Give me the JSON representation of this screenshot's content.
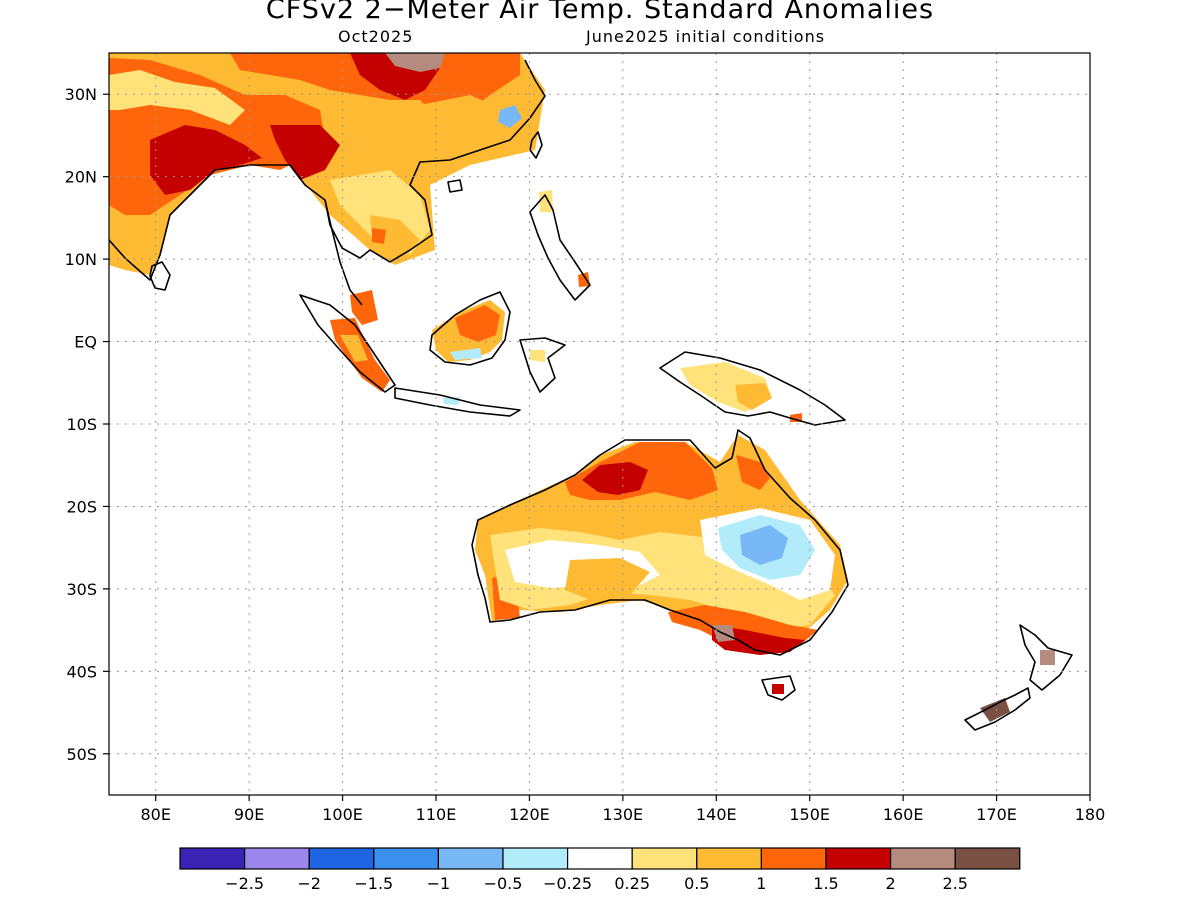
{
  "title": "CFSv2 2−Meter Air Temp. Standard Anomalies",
  "valid_month": "Oct2025",
  "init_conditions": "June2025 initial conditions",
  "map": {
    "lon_range": [
      75,
      180
    ],
    "lat_range": [
      -55,
      35
    ],
    "lon_ticks": [
      {
        "lon": 80,
        "label": "80E"
      },
      {
        "lon": 90,
        "label": "90E"
      },
      {
        "lon": 100,
        "label": "100E"
      },
      {
        "lon": 110,
        "label": "110E"
      },
      {
        "lon": 120,
        "label": "120E"
      },
      {
        "lon": 130,
        "label": "130E"
      },
      {
        "lon": 140,
        "label": "140E"
      },
      {
        "lon": 150,
        "label": "150E"
      },
      {
        "lon": 160,
        "label": "160E"
      },
      {
        "lon": 170,
        "label": "170E"
      },
      {
        "lon": 180,
        "label": "180"
      }
    ],
    "lat_ticks": [
      {
        "lat": 30,
        "label": "30N"
      },
      {
        "lat": 20,
        "label": "20N"
      },
      {
        "lat": 10,
        "label": "10N"
      },
      {
        "lat": 0,
        "label": "EQ"
      },
      {
        "lat": -10,
        "label": "10S"
      },
      {
        "lat": -20,
        "label": "20S"
      },
      {
        "lat": -30,
        "label": "30S"
      },
      {
        "lat": -40,
        "label": "40S"
      },
      {
        "lat": -50,
        "label": "50S"
      }
    ],
    "gridlines": "dotted",
    "regions": [
      {
        "name": "south-asia-anomaly",
        "level": 1.5
      },
      {
        "name": "indochina-anomaly",
        "level": 0.5
      },
      {
        "name": "china-anomaly",
        "level": 1.5
      },
      {
        "name": "borneo-anomaly",
        "level": 1.5
      },
      {
        "name": "sumatra-anomaly",
        "level": 1.0
      },
      {
        "name": "new-guinea-anomaly",
        "level": 0.5
      },
      {
        "name": "australia-north-anomaly",
        "level": 1.5
      },
      {
        "name": "australia-central-anomaly",
        "level": 0.5
      },
      {
        "name": "australia-east-cool-anomaly",
        "level": -0.5
      },
      {
        "name": "australia-southeast-anomaly",
        "level": 2.0
      },
      {
        "name": "new-zealand-anomaly",
        "level": 2.5
      }
    ]
  },
  "colorbar": {
    "colors": [
      "#3a22b4",
      "#9b86ee",
      "#1f64e2",
      "#3b8fee",
      "#78b8f7",
      "#b2ecfa",
      "#ffffff",
      "#ffe27a",
      "#ffba34",
      "#ff650b",
      "#c40000",
      "#b68b7f",
      "#7a4f44"
    ],
    "labels": [
      "−2.5",
      "−2",
      "−1.5",
      "−1",
      "−0.5",
      "−0.25",
      "0.25",
      "0.5",
      "1",
      "1.5",
      "2",
      "2.5"
    ]
  }
}
